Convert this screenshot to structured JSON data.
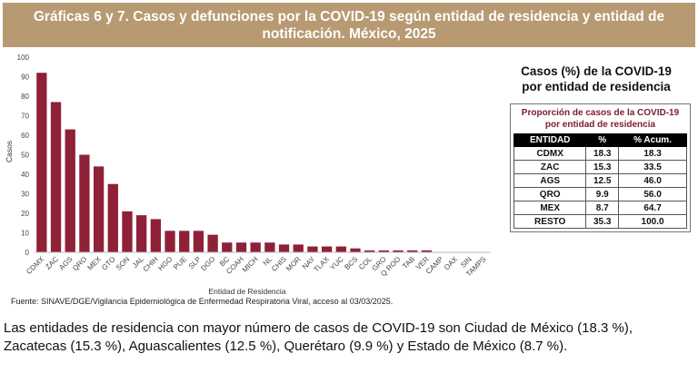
{
  "header": {
    "line1": "Gráficas 6 y 7. Casos y defunciones por la COVID-19  según entidad de residencia y entidad de",
    "line2": "notificación. México, 2025"
  },
  "chart_data": {
    "type": "bar",
    "categories": [
      "CDMX",
      "ZAC",
      "AGS",
      "QRO",
      "MEX",
      "GTO",
      "SON",
      "JAL",
      "CHIH",
      "HGO",
      "PUE",
      "SLP",
      "DGO",
      "BC",
      "COAH",
      "MICH",
      "NL",
      "CHIS",
      "MOR",
      "NAY",
      "TLAX",
      "YUC",
      "BCS",
      "COL",
      "GRO",
      "Q ROO",
      "TAB",
      "VER",
      "CAMP",
      "OAX",
      "SIN",
      "TAMPS"
    ],
    "values": [
      92,
      77,
      63,
      50,
      44,
      35,
      21,
      19,
      17,
      11,
      11,
      11,
      9,
      5,
      5,
      5,
      5,
      4,
      4,
      3,
      3,
      3,
      2,
      1,
      1,
      1,
      1,
      1,
      0,
      0,
      0,
      0
    ],
    "xlabel": "Entidad de Residencia",
    "ylabel": "Casos",
    "ylim": [
      0,
      100
    ],
    "yticks": [
      0,
      10,
      20,
      30,
      40,
      50,
      60,
      70,
      80,
      90,
      100
    ],
    "bar_color": "#8e2037",
    "grid": false,
    "legend": "none"
  },
  "source": "Fuente: SINAVE/DGE/Vigilancia Epidemiológica de Enfermedad Respiratoria Viral, acceso al 03/03/2025.",
  "side": {
    "title_line1": "Casos (%) de la COVID-19",
    "title_line2": "por entidad de residencia",
    "table": {
      "caption_line1": "Proporción de casos de la COVID-19",
      "caption_line2": "por entidad de residencia",
      "headers": [
        "ENTIDAD",
        "%",
        "% Acum."
      ],
      "rows": [
        [
          "CDMX",
          "18.3",
          "18.3"
        ],
        [
          "ZAC",
          "15.3",
          "33.5"
        ],
        [
          "AGS",
          "12.5",
          "46.0"
        ],
        [
          "QRO",
          "9.9",
          "56.0"
        ],
        [
          "MEX",
          "8.7",
          "64.7"
        ],
        [
          "RESTO",
          "35.3",
          "100.0"
        ]
      ]
    }
  },
  "summary": "Las entidades de residencia con mayor número de casos de COVID-19 son Ciudad de México (18.3 %), Zacatecas  (15.3 %), Aguascalientes (12.5 %), Querétaro (9.9 %) y Estado de México (8.7 %)."
}
